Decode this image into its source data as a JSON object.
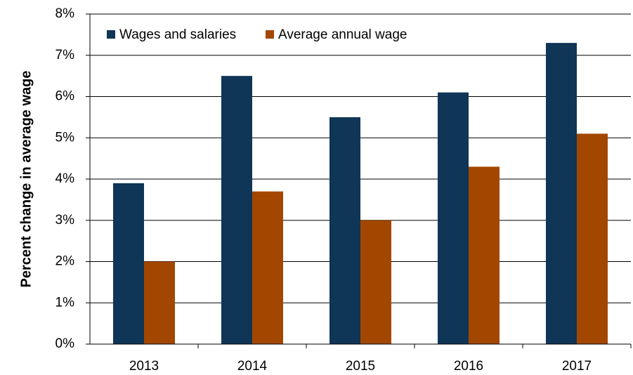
{
  "chart_data": {
    "type": "bar",
    "y_label": "Percent change in average wage",
    "categories": [
      "2013",
      "2014",
      "2015",
      "2016",
      "2017"
    ],
    "series": [
      {
        "name": "Wages and salaries",
        "color": "#0f3557",
        "values": [
          3.9,
          6.5,
          5.5,
          6.1,
          7.3
        ]
      },
      {
        "name": "Average annual wage",
        "color": "#a34700",
        "values": [
          2.0,
          3.7,
          3.0,
          4.3,
          5.1
        ]
      }
    ],
    "ylim": [
      0,
      8
    ],
    "yticks": [
      {
        "value": 0,
        "label": "0%"
      },
      {
        "value": 1,
        "label": "1%"
      },
      {
        "value": 2,
        "label": "2%"
      },
      {
        "value": 3,
        "label": "3%"
      },
      {
        "value": 4,
        "label": "4%"
      },
      {
        "value": 5,
        "label": "5%"
      },
      {
        "value": 6,
        "label": "6%"
      },
      {
        "value": 7,
        "label": "7%"
      },
      {
        "value": 8,
        "label": "8%"
      }
    ],
    "grid": true,
    "legend": "top-left"
  }
}
